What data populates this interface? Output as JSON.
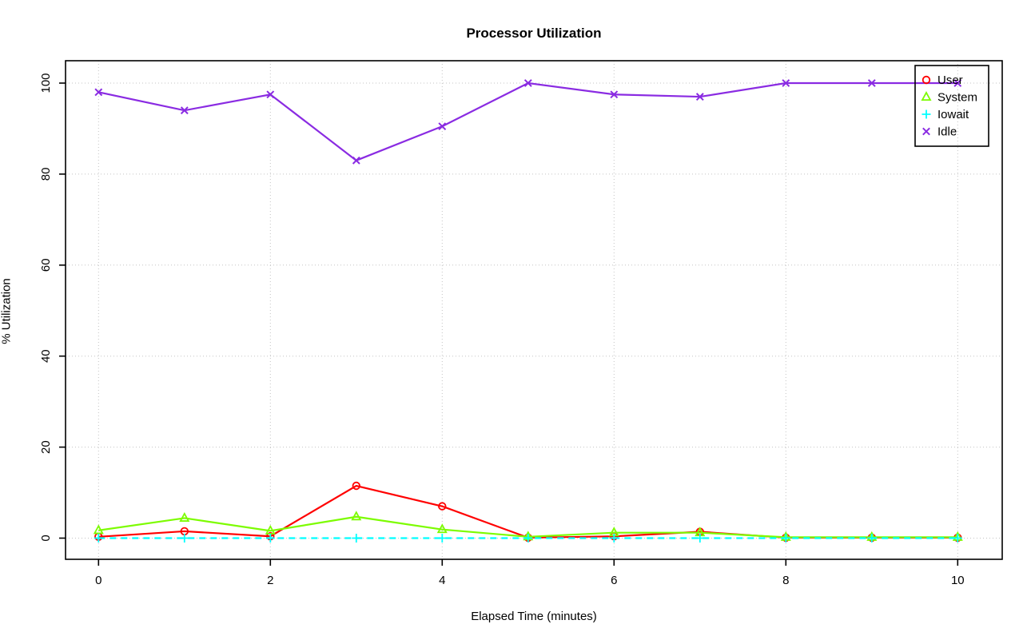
{
  "chart_data": {
    "type": "line",
    "title": "Processor Utilization",
    "xlabel": "Elapsed Time (minutes)",
    "ylabel": "% Utilization",
    "x": [
      0,
      1,
      2,
      3,
      4,
      5,
      6,
      7,
      8,
      9,
      10
    ],
    "xticks": [
      0,
      2,
      4,
      6,
      8,
      10
    ],
    "yticks": [
      0,
      20,
      40,
      60,
      80,
      100
    ],
    "xlim": [
      0,
      10
    ],
    "ylim": [
      0,
      100
    ],
    "grid": true,
    "grid_style": "dotted",
    "grid_color": "#c3c3c3",
    "legend_position": "top-right",
    "series": [
      {
        "name": "User",
        "color": "#ff0000",
        "marker": "circle",
        "line_style": "solid",
        "values": [
          0.3,
          1.5,
          0.4,
          11.5,
          7,
          0.1,
          0.4,
          1.4,
          0.1,
          0.1,
          0.1
        ]
      },
      {
        "name": "System",
        "color": "#7cfc00",
        "marker": "triangle",
        "line_style": "solid",
        "values": [
          1.7,
          4.4,
          1.6,
          4.7,
          1.9,
          0.3,
          1.2,
          1.2,
          0.2,
          0.2,
          0.2
        ]
      },
      {
        "name": "Iowait",
        "color": "#00ffff",
        "marker": "plus",
        "line_style": "dashed",
        "values": [
          0,
          0,
          0,
          0,
          0,
          0,
          0,
          0,
          0,
          0,
          0
        ]
      },
      {
        "name": "Idle",
        "color": "#8a2be2",
        "marker": "x",
        "line_style": "solid",
        "values": [
          98,
          94,
          97.5,
          83,
          90.5,
          100,
          97.5,
          97,
          100,
          100,
          100
        ]
      }
    ]
  }
}
